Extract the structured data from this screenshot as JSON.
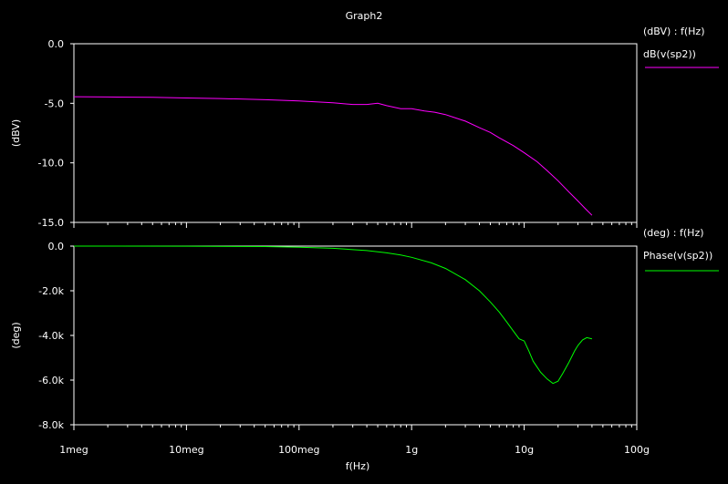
{
  "title": "Graph2",
  "colors": {
    "background": "#000000",
    "frame": "#ffffff",
    "text": "#ffffff",
    "magnitude": "#ff00ff",
    "phase": "#00ff00"
  },
  "chart_data": [
    {
      "type": "line",
      "panel": "top",
      "ylabel": "(dBV)",
      "xscale": "log",
      "xlim": [
        1000000,
        100000000000
      ],
      "ylim": [
        -15.0,
        0.0
      ],
      "yticks": [
        "0.0",
        "-5.0",
        "-10.0",
        "-15.0"
      ],
      "grid": false,
      "legend": {
        "placement": "right",
        "axis_label": "(dBV) : f(Hz)",
        "entry": "dB(v(sp2))"
      },
      "series": [
        {
          "name": "dB(v(sp2))",
          "color": "#ff00ff",
          "x": [
            1000000.0,
            2000000.0,
            5000000.0,
            10000000.0,
            20000000.0,
            50000000.0,
            100000000.0,
            200000000.0,
            300000000.0,
            400000000.0,
            500000000.0,
            600000000.0,
            800000000.0,
            1000000000.0,
            1300000000.0,
            1600000000.0,
            2000000000.0,
            3000000000.0,
            4000000000.0,
            5000000000.0,
            6000000000.0,
            8000000000.0,
            10000000000.0,
            13000000000.0,
            16000000000.0,
            20000000000.0,
            25000000000.0,
            30000000000.0,
            35000000000.0,
            40000000000.0
          ],
          "values": [
            -4.45,
            -4.47,
            -4.5,
            -4.55,
            -4.6,
            -4.7,
            -4.8,
            -4.95,
            -5.1,
            -5.1,
            -5.0,
            -5.2,
            -5.45,
            -5.45,
            -5.65,
            -5.75,
            -5.95,
            -6.5,
            -7.05,
            -7.45,
            -7.9,
            -8.55,
            -9.15,
            -9.9,
            -10.65,
            -11.5,
            -12.45,
            -13.2,
            -13.85,
            -14.4
          ]
        }
      ],
      "xlabel": ""
    },
    {
      "type": "line",
      "panel": "bottom",
      "ylabel": "(deg)",
      "xlabel": "f(Hz)",
      "xscale": "log",
      "xlim": [
        1000000,
        100000000000
      ],
      "ylim": [
        -8000,
        0
      ],
      "yticks": [
        "0.0",
        "-2.0k",
        "-4.0k",
        "-6.0k",
        "-8.0k"
      ],
      "xticks": [
        "1meg",
        "10meg",
        "100meg",
        "1g",
        "10g",
        "100g"
      ],
      "grid": false,
      "legend": {
        "placement": "right",
        "axis_label": "(deg) : f(Hz)",
        "entry": "Phase(v(sp2))"
      },
      "series": [
        {
          "name": "Phase(v(sp2))",
          "color": "#00ff00",
          "x": [
            1000000.0,
            10000000.0,
            50000000.0,
            100000000.0,
            200000000.0,
            400000000.0,
            600000000.0,
            800000000.0,
            1000000000.0,
            1500000000.0,
            2000000000.0,
            3000000000.0,
            4000000000.0,
            5000000000.0,
            6000000000.0,
            7000000000.0,
            8000000000.0,
            9000000000.0,
            10000000000.0,
            11000000000.0,
            12000000000.0,
            14000000000.0,
            16000000000.0,
            18000000000.0,
            20000000000.0,
            22000000000.0,
            25000000000.0,
            28000000000.0,
            30000000000.0,
            33000000000.0,
            36000000000.0,
            40000000000.0
          ],
          "values": [
            0,
            -5,
            -20,
            -50,
            -100,
            -200,
            -300,
            -400,
            -500,
            -750,
            -1000,
            -1500,
            -2000,
            -2500,
            -2950,
            -3400,
            -3800,
            -4150,
            -4250,
            -4700,
            -5150,
            -5650,
            -5950,
            -6150,
            -6050,
            -5700,
            -5200,
            -4700,
            -4450,
            -4200,
            -4100,
            -4150
          ]
        }
      ]
    }
  ]
}
